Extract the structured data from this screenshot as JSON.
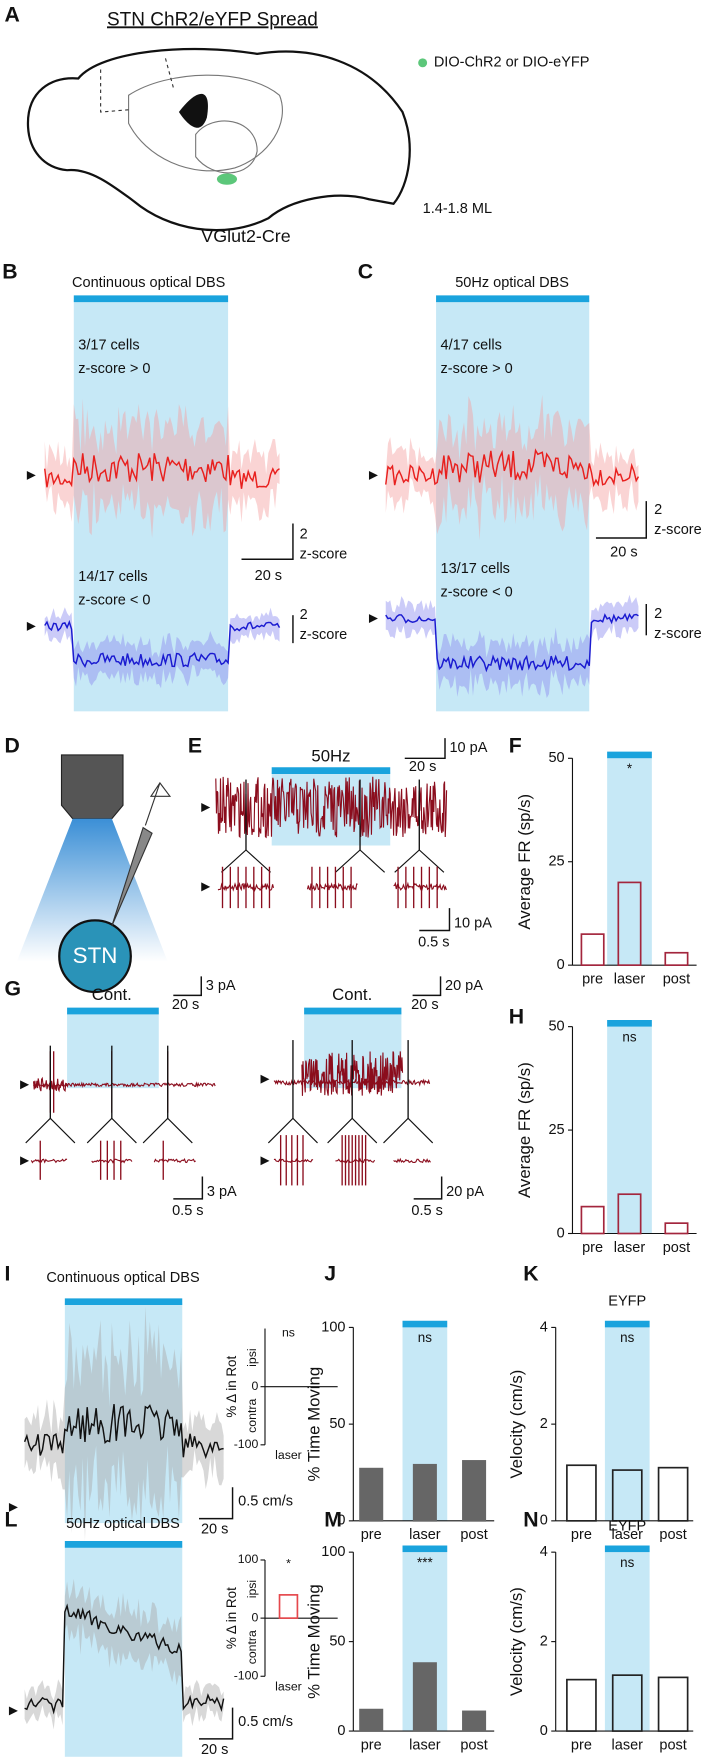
{
  "panels": {
    "A": {
      "letter": "A",
      "title": "STN ChR2/eYFP Spread",
      "legend": "DIO-ChR2 or DIO-eYFP",
      "ml": "1.4-1.8 ML",
      "line": "VGlut2-Cre"
    },
    "B": {
      "letter": "B",
      "title": "Continuous optical DBS",
      "up_count": "3/17 cells",
      "up_text": "z-score > 0",
      "down_count": "14/17 cells",
      "down_text": "z-score < 0",
      "scale_y": "2",
      "scale_unit": "z-score",
      "scale_x": "20 s",
      "scale2_y": "2",
      "scale2_unit": "z-score"
    },
    "C": {
      "letter": "C",
      "title": "50Hz optical DBS",
      "up_count": "4/17 cells",
      "up_text": "z-score > 0",
      "down_count": "13/17 cells",
      "down_text": "z-score < 0",
      "scale_y": "2",
      "scale_unit": "z-score",
      "scale_x": "20 s",
      "scale2_y": "2",
      "scale2_unit": "z-score"
    },
    "D": {
      "letter": "D",
      "target": "STN"
    },
    "E": {
      "letter": "E",
      "stim": "50Hz",
      "scale_top_y": "10 pA",
      "scale_top_x": "20 s",
      "scale_bottom_y": "10 pA",
      "scale_bottom_x": "0.5 s"
    },
    "F": {
      "letter": "F",
      "ylabel": "Average FR (sp/s)",
      "categories": [
        "pre",
        "laser",
        "post"
      ],
      "values": [
        7.5,
        20,
        3
      ],
      "color": "#a3263d",
      "filled": false,
      "ylim": [
        0,
        50
      ],
      "yticks": [
        0,
        25,
        50
      ],
      "annotation": "*"
    },
    "G": {
      "letter": "G",
      "left": {
        "stim": "Cont.",
        "scale_top_y": "3 pA",
        "scale_top_x": "20 s",
        "scale_bottom_y": "3 pA",
        "scale_bottom_x": "0.5 s"
      },
      "right": {
        "stim": "Cont.",
        "scale_top_y": "20 pA",
        "scale_top_x": "20 s",
        "scale_bottom_y": "20 pA",
        "scale_bottom_x": "0.5 s"
      }
    },
    "H": {
      "letter": "H",
      "ylabel": "Average FR (sp/s)",
      "categories": [
        "pre",
        "laser",
        "post"
      ],
      "values": [
        6.5,
        9.5,
        2.5
      ],
      "color": "#a3263d",
      "filled": false,
      "ylim": [
        0,
        50
      ],
      "yticks": [
        0,
        25,
        50
      ],
      "annotation": "ns"
    },
    "I": {
      "letter": "I",
      "title": "Continuous optical DBS",
      "scale_y": "0.5 cm/s",
      "scale_x": "20 s",
      "inset": {
        "ylabel": "% Δ in Rot",
        "ipsi": "ipsi",
        "contra": "contra",
        "category": "laser",
        "annotation": "ns",
        "ylim": [
          -100,
          100
        ],
        "yticks": [
          -100,
          0
        ]
      }
    },
    "J": {
      "letter": "J",
      "ylabel": "% Time Moving",
      "categories": [
        "pre",
        "laser",
        "post"
      ],
      "values": [
        27,
        29,
        31
      ],
      "color": "#666666",
      "filled": true,
      "ylim": [
        0,
        100
      ],
      "yticks": [
        0,
        50,
        100
      ],
      "annotation": "ns"
    },
    "K": {
      "letter": "K",
      "title": "EYFP",
      "ylabel": "Velocity (cm/s)",
      "categories": [
        "pre",
        "laser",
        "post"
      ],
      "values": [
        1.15,
        1.05,
        1.1
      ],
      "color": "#222222",
      "filled": false,
      "ylim": [
        0,
        4
      ],
      "yticks": [
        0,
        2,
        4
      ],
      "annotation": "ns"
    },
    "L": {
      "letter": "L",
      "title": "50Hz optical DBS",
      "scale_y": "0.5 cm/s",
      "scale_x": "20 s",
      "inset": {
        "ylabel": "% Δ in Rot",
        "ipsi": "ipsi",
        "contra": "contra",
        "category": "laser",
        "annotation": "*",
        "value": 40,
        "ylim": [
          -100,
          100
        ],
        "yticks": [
          -100,
          0,
          100
        ]
      }
    },
    "M": {
      "letter": "M",
      "ylabel": "% Time Moving",
      "categories": [
        "pre",
        "laser",
        "post"
      ],
      "values": [
        12,
        38,
        11
      ],
      "color": "#666666",
      "filled": true,
      "ylim": [
        0,
        100
      ],
      "yticks": [
        0,
        50,
        100
      ],
      "annotation": "***"
    },
    "N": {
      "letter": "N",
      "title": "EYFP",
      "ylabel": "Velocity (cm/s)",
      "categories": [
        "pre",
        "laser",
        "post"
      ],
      "values": [
        1.15,
        1.25,
        1.2
      ],
      "color": "#222222",
      "filled": false,
      "ylim": [
        0,
        4
      ],
      "yticks": [
        0,
        2,
        4
      ],
      "annotation": "ns"
    }
  }
}
